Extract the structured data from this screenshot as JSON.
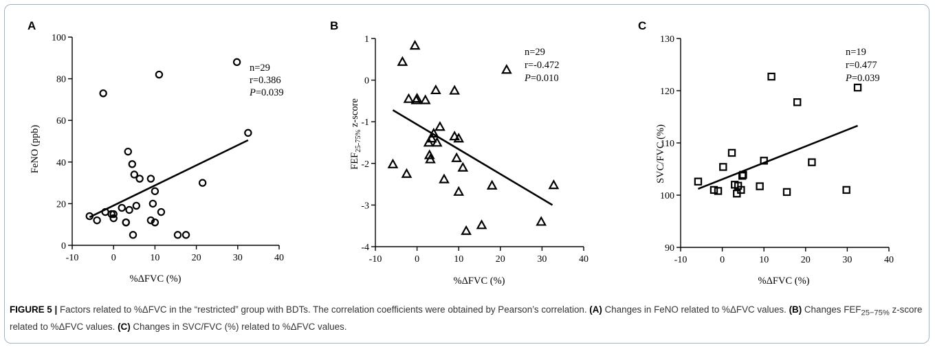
{
  "chart_data": [
    {
      "panel": "A",
      "type": "scatter",
      "marker": "circle",
      "xlabel": "%ΔFVC (%)",
      "ylabel": "FeNO (ppb)",
      "xlim": [
        -10,
        40
      ],
      "ylim": [
        0,
        100
      ],
      "x_ticks": [
        -10,
        0,
        10,
        20,
        30,
        40
      ],
      "y_ticks": [
        0,
        20,
        40,
        60,
        80,
        100
      ],
      "stats": {
        "n": "n=29",
        "r": "r=0.386",
        "p": "=0.039"
      },
      "fit": [
        [
          -5.8,
          13.5
        ],
        [
          32.5,
          50.5
        ]
      ],
      "points": [
        [
          -5.8,
          14
        ],
        [
          -4,
          12
        ],
        [
          -2.5,
          73
        ],
        [
          -2,
          16
        ],
        [
          -0.5,
          15
        ],
        [
          0,
          13
        ],
        [
          0,
          15
        ],
        [
          2,
          18
        ],
        [
          3,
          11
        ],
        [
          3,
          11
        ],
        [
          3.5,
          45
        ],
        [
          3.8,
          17
        ],
        [
          4.5,
          39
        ],
        [
          4.7,
          5
        ],
        [
          5,
          34
        ],
        [
          5.5,
          19
        ],
        [
          6.3,
          32
        ],
        [
          9,
          12
        ],
        [
          9,
          32
        ],
        [
          9.5,
          20
        ],
        [
          10,
          26
        ],
        [
          10,
          11
        ],
        [
          11,
          82
        ],
        [
          11.5,
          16
        ],
        [
          15.5,
          5
        ],
        [
          17.5,
          5
        ],
        [
          21.5,
          30
        ],
        [
          29.8,
          88
        ],
        [
          32.5,
          54
        ]
      ]
    },
    {
      "panel": "B",
      "type": "scatter",
      "marker": "triangle",
      "xlabel": "%ΔFVC (%)",
      "ylabel": "FEF25-75% z-score",
      "xlim": [
        -10,
        40
      ],
      "ylim": [
        -4,
        1
      ],
      "x_ticks": [
        -10,
        0,
        10,
        20,
        30,
        40
      ],
      "y_ticks": [
        -4,
        -3,
        -2,
        -1,
        0,
        1
      ],
      "stats": {
        "n": "n=29",
        "r": "r=-0.472",
        "p": "=0.010"
      },
      "fit": [
        [
          -5.8,
          -0.72
        ],
        [
          32.5,
          -3.0
        ]
      ],
      "points": [
        [
          -5.8,
          -2.02
        ],
        [
          -3.5,
          0.44
        ],
        [
          -2.5,
          -2.25
        ],
        [
          -2,
          -0.45
        ],
        [
          -0.5,
          0.83
        ],
        [
          -0.2,
          -0.48
        ],
        [
          0,
          -0.44
        ],
        [
          2,
          -0.48
        ],
        [
          2.8,
          -1.5
        ],
        [
          3,
          -1.8
        ],
        [
          3.2,
          -1.9
        ],
        [
          3.5,
          -1.4
        ],
        [
          4,
          -1.28
        ],
        [
          4.5,
          -0.24
        ],
        [
          4.8,
          -1.5
        ],
        [
          5.5,
          -1.12
        ],
        [
          6.5,
          -2.38
        ],
        [
          9,
          -0.25
        ],
        [
          9,
          -1.35
        ],
        [
          9.5,
          -1.87
        ],
        [
          10,
          -1.4
        ],
        [
          10,
          -2.68
        ],
        [
          11,
          -2.1
        ],
        [
          11.8,
          -3.62
        ],
        [
          15.5,
          -3.48
        ],
        [
          18,
          -2.53
        ],
        [
          21.5,
          0.25
        ],
        [
          29.8,
          -3.4
        ],
        [
          32.8,
          -2.52
        ]
      ]
    },
    {
      "panel": "C",
      "type": "scatter",
      "marker": "square",
      "xlabel": "%ΔFVC (%)",
      "ylabel": "SVC/FVC (%)",
      "xlim": [
        -10,
        40
      ],
      "ylim": [
        90,
        130
      ],
      "x_ticks": [
        -10,
        0,
        10,
        20,
        30,
        40
      ],
      "y_ticks": [
        90,
        100,
        110,
        120,
        130
      ],
      "stats": {
        "n": "n=19",
        "r": "r=0.477",
        "p": "=0.039"
      },
      "fit": [
        [
          -5.8,
          101.2
        ],
        [
          32.5,
          113.3
        ]
      ],
      "points": [
        [
          -5.8,
          102.6
        ],
        [
          -2,
          101
        ],
        [
          -1,
          100.8
        ],
        [
          0.2,
          105.4
        ],
        [
          2.3,
          108.1
        ],
        [
          3,
          102
        ],
        [
          3.5,
          100.3
        ],
        [
          3.8,
          101.8
        ],
        [
          4.5,
          101
        ],
        [
          4.8,
          103.7
        ],
        [
          5,
          103.9
        ],
        [
          9,
          101.7
        ],
        [
          10,
          106.6
        ],
        [
          11.8,
          122.7
        ],
        [
          15.5,
          100.6
        ],
        [
          18,
          117.8
        ],
        [
          21.5,
          106.3
        ],
        [
          29.8,
          101
        ],
        [
          32.5,
          120.6
        ]
      ]
    }
  ],
  "caption": {
    "label": "FIGURE 5 |",
    "text_1": " Factors related to %ΔFVC in the “restricted” group with BDTs. The correlation coefficients were obtained by Pearson’s correlation. ",
    "a_label": "(A)",
    "a_text": " Changes in FeNO related to %ΔFVC values. ",
    "b_label": "(B)",
    "b_text_1": " Changes FEF",
    "b_sub": "25−75%",
    "b_text_2": " z-score related to %ΔFVC values. ",
    "c_label": "(C)",
    "c_text": " Changes in SVC/FVC (%) related to %ΔFVC values."
  }
}
